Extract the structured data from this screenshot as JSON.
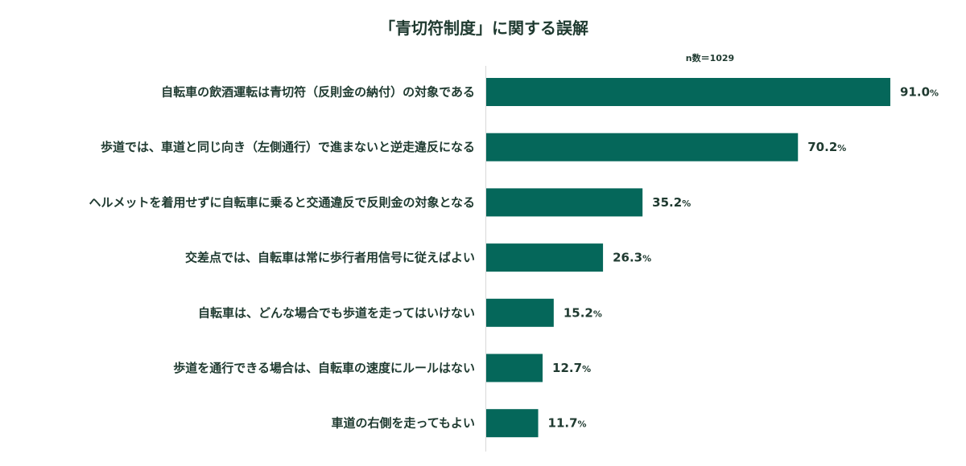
{
  "chart_data": {
    "type": "bar",
    "orientation": "horizontal",
    "title": "「青切符制度」に関する誤解",
    "note": "n数＝1029",
    "unit": "%",
    "categories": [
      "自転車の飲酒運転は青切符（反則金の納付）の対象である",
      "歩道では、車道と同じ向き（左側通行）で進まないと逆走違反になる",
      "ヘルメットを着用せずに自転車に乗ると交通違反で反則金の対象となる",
      "交差点では、自転車は常に歩行者用信号に従えばよい",
      "自転車は、どんな場合でも歩道を走ってはいけない",
      "歩道を通行できる場合は、自転車の速度にルールはない",
      "車道の右側を走ってもよい"
    ],
    "values": [
      91.0,
      70.2,
      35.2,
      26.3,
      15.2,
      12.7,
      11.7
    ],
    "xlim": [
      0,
      100
    ],
    "grid": false,
    "bar_color": "#05675a"
  }
}
